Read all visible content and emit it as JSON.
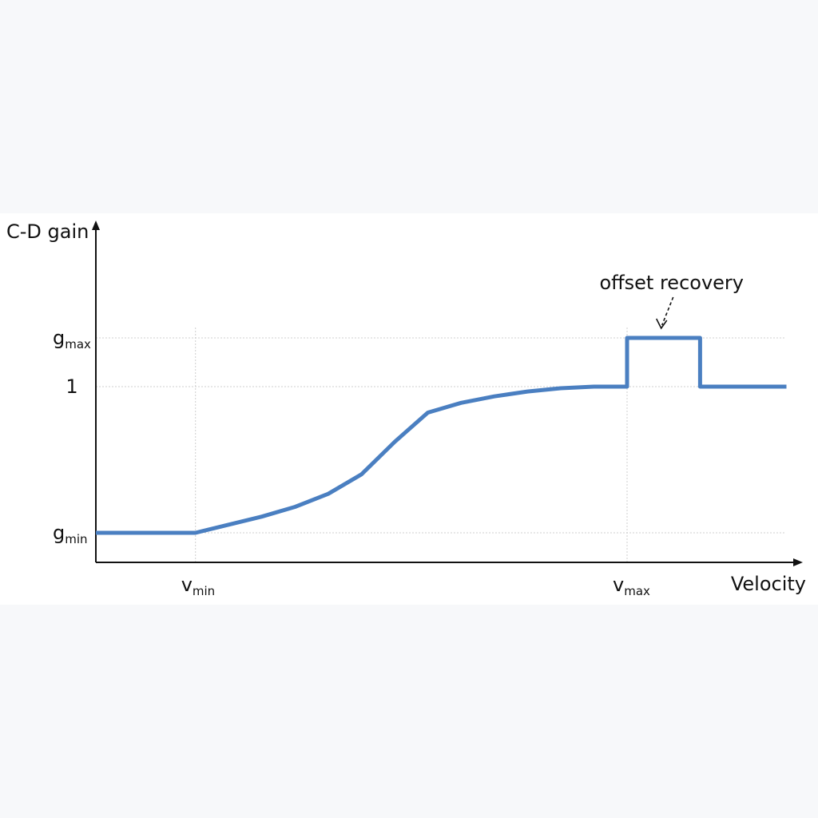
{
  "chart_data": {
    "type": "line",
    "title": "",
    "ylabel": "C-D gain",
    "xlabel": "Velocity",
    "x_ticks": [
      {
        "name": "v-min",
        "base": "v",
        "sub": "min",
        "x": 0.15
      },
      {
        "name": "v-max",
        "base": "v",
        "sub": "max",
        "x": 0.8
      }
    ],
    "y_ticks": [
      {
        "name": "g-max",
        "base": "g",
        "sub": "max",
        "y": 1.3
      },
      {
        "name": "one",
        "base": "1",
        "sub": "",
        "y": 1.0
      },
      {
        "name": "g-min",
        "base": "g",
        "sub": "min",
        "y": 0.1
      }
    ],
    "xlim": [
      0,
      1.06
    ],
    "ylim": [
      -0.1,
      2.1
    ],
    "grid": true,
    "series": [
      {
        "color": "#4a7fc1",
        "x": [
          0.0,
          0.05,
          0.1,
          0.15,
          0.2,
          0.25,
          0.3,
          0.35,
          0.4,
          0.45,
          0.5,
          0.55,
          0.6,
          0.65,
          0.7,
          0.75,
          0.8,
          0.8,
          0.91,
          0.91,
          1.04
        ],
        "y": [
          0.1,
          0.1,
          0.1,
          0.1,
          0.15,
          0.2,
          0.26,
          0.34,
          0.46,
          0.66,
          0.84,
          0.9,
          0.94,
          0.97,
          0.99,
          1.0,
          1.0,
          1.3,
          1.3,
          1.0,
          1.0
        ]
      }
    ],
    "annotations": [
      {
        "name": "offset-recovery",
        "text": "offset recovery",
        "x": 0.855,
        "y": 1.3
      }
    ]
  }
}
